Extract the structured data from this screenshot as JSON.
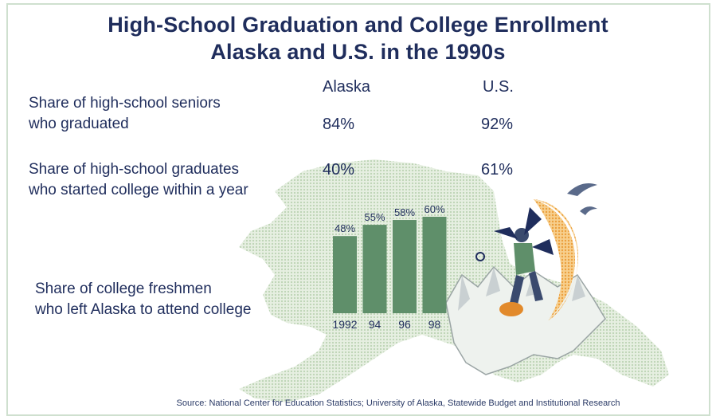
{
  "title_line1": "High-School Graduation and College Enrollment",
  "title_line2": "Alaska and U.S. in the 1990s",
  "columns": {
    "alaska": "Alaska",
    "us": "U.S."
  },
  "rows": [
    {
      "label_line1": "Share of high-school seniors",
      "label_line2": "who graduated",
      "alaska": "84%",
      "us": "92%"
    },
    {
      "label_line1": "Share of high-school graduates",
      "label_line2": "who started college within a year",
      "alaska": "40%",
      "us": "61%"
    }
  ],
  "bar_label_line1": "Share of college freshmen",
  "bar_label_line2": "who left Alaska to attend college",
  "source": "Source: National Center for Education Statistics; University of Alaska, Statewide Budget and Institutional Research",
  "colors": {
    "bar": "#5f8f6a",
    "map": "#d8e6d2",
    "text": "#1f2d5c",
    "moon": "#f4b96a"
  },
  "chart_data": {
    "type": "bar",
    "categories": [
      "1992",
      "94",
      "96",
      "98"
    ],
    "values": [
      48,
      55,
      58,
      60
    ],
    "value_labels": [
      "48%",
      "55%",
      "58%",
      "60%"
    ],
    "title": "",
    "xlabel": "",
    "ylabel": "",
    "ylim": [
      0,
      60
    ]
  }
}
